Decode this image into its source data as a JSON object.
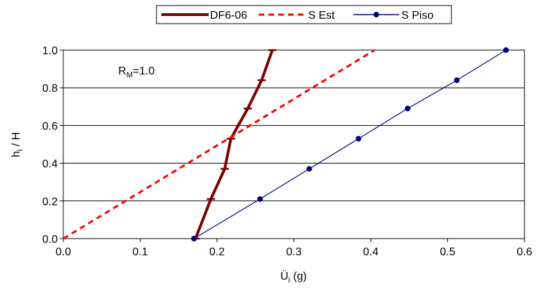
{
  "chart_data": {
    "type": "line",
    "title": "",
    "xlabel": "Ü",
    "xlabel_sub": "i",
    "xlabel_suffix": " (g)",
    "ylabel": "h",
    "ylabel_sub": "i",
    "ylabel_suffix": " / H",
    "xlim": [
      0.0,
      0.6
    ],
    "ylim": [
      0.0,
      1.0
    ],
    "xticks": [
      "0.0",
      "0.1",
      "0.2",
      "0.3",
      "0.4",
      "0.5",
      "0.6"
    ],
    "yticks": [
      "0.0",
      "0.2",
      "0.4",
      "0.6",
      "0.8",
      "1.0"
    ],
    "grid": "horizontal",
    "legend_position": "top",
    "annotation": {
      "main": "R",
      "sub": "M",
      "suffix": "=1.0"
    },
    "series": [
      {
        "name": "DF6-06",
        "color": "#7b0000",
        "style": "thick-solid-dash-markers",
        "points": [
          {
            "x": 0.172,
            "y": 0.0
          },
          {
            "x": 0.192,
            "y": 0.21
          },
          {
            "x": 0.21,
            "y": 0.37
          },
          {
            "x": 0.218,
            "y": 0.53
          },
          {
            "x": 0.24,
            "y": 0.69
          },
          {
            "x": 0.258,
            "y": 0.84
          },
          {
            "x": 0.272,
            "y": 1.0
          }
        ]
      },
      {
        "name": "S Est",
        "color": "#ff0000",
        "style": "dashed",
        "points": [
          {
            "x": 0.0,
            "y": 0.0
          },
          {
            "x": 0.405,
            "y": 1.0
          }
        ]
      },
      {
        "name": "S Piso",
        "color": "#000080",
        "style": "solid-circle-markers",
        "points": [
          {
            "x": 0.17,
            "y": 0.0
          },
          {
            "x": 0.256,
            "y": 0.21
          },
          {
            "x": 0.32,
            "y": 0.37
          },
          {
            "x": 0.384,
            "y": 0.53
          },
          {
            "x": 0.448,
            "y": 0.69
          },
          {
            "x": 0.512,
            "y": 0.84
          },
          {
            "x": 0.576,
            "y": 1.0
          }
        ]
      }
    ]
  }
}
